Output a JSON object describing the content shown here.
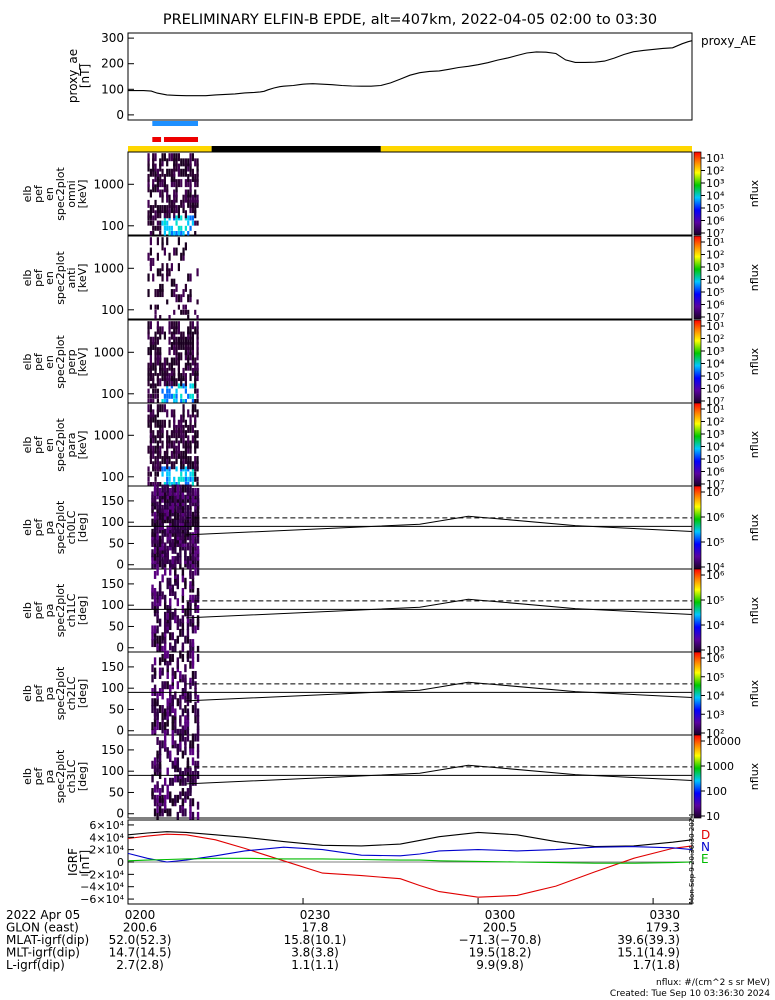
{
  "title": "PRELIMINARY ELFIN-B EPDE, alt=407km, 2022-04-05 02:00 to 03:30",
  "chart_data": [
    {
      "panel": "proxy_ae",
      "type": "line",
      "ylabel": [
        "proxy_ae",
        "[nT]"
      ],
      "legend": "proxy_AE",
      "ylim": [
        -20,
        320
      ],
      "yticks": [
        0,
        100,
        200,
        300
      ],
      "x_minutes": [
        0,
        8,
        12,
        15,
        20,
        25,
        30,
        40,
        45,
        55,
        60,
        65,
        68,
        70,
        72,
        75,
        78,
        80,
        85,
        88,
        90,
        92,
        95,
        100,
        105,
        110,
        115,
        120,
        125,
        130,
        135,
        140,
        145,
        150,
        155,
        160,
        165,
        170,
        175,
        180,
        185,
        190,
        195,
        200,
        205,
        210,
        215,
        220,
        225,
        230,
        235,
        240,
        245,
        250,
        255,
        260,
        265,
        270,
        275,
        280,
        285,
        288,
        290
      ],
      "values": [
        95,
        95,
        93,
        85,
        78,
        76,
        75,
        75,
        78,
        82,
        86,
        88,
        90,
        92,
        98,
        105,
        110,
        112,
        115,
        118,
        120,
        121,
        122,
        120,
        118,
        115,
        113,
        112,
        112,
        115,
        125,
        140,
        155,
        165,
        170,
        172,
        178,
        185,
        190,
        196,
        204,
        214,
        222,
        232,
        242,
        246,
        245,
        240,
        215,
        205,
        205,
        206,
        210,
        222,
        236,
        247,
        252,
        256,
        260,
        262,
        278,
        286,
        290
      ]
    },
    {
      "panel": "orbit_indicators",
      "type": "bars",
      "bars": [
        {
          "color": "#1e90ff",
          "x0": 12.5,
          "x1": 36
        },
        {
          "color": "#ee0000",
          "x0": 12.5,
          "x1": 17
        },
        {
          "color": "#ee0000",
          "x0": 18.5,
          "x1": 36
        }
      ],
      "sun_bar": [
        {
          "color": "#ffd700",
          "x0": 0,
          "x1": 43
        },
        {
          "color": "#000000",
          "x0": 43,
          "x1": 130
        },
        {
          "color": "#ffd700",
          "x0": 130,
          "x1": 290
        }
      ]
    },
    {
      "panel": "spectrogram",
      "type": "heatmap",
      "names": [
        [
          "elb",
          "pef",
          "en",
          "spec2plot",
          "omni",
          "[keV]"
        ],
        [
          "elb",
          "pef",
          "en",
          "spec2plot",
          "anti",
          "[keV]"
        ],
        [
          "elb",
          "pef",
          "en",
          "spec2plot",
          "perp",
          "[keV]"
        ],
        [
          "elb",
          "pef",
          "en",
          "spec2plot",
          "para",
          "[keV]"
        ]
      ],
      "yscale": "log",
      "yticks": [
        100,
        1000
      ],
      "ylim_keV": [
        60,
        6000
      ],
      "colorbar": {
        "label": "nflux",
        "exponents": [
          "10¹",
          "10²",
          "10³",
          "10⁴",
          "10⁵",
          "10⁶",
          "10⁷"
        ]
      },
      "active_x": [
        10,
        36
      ]
    },
    {
      "panel": "pitch_angle",
      "type": "heatmap",
      "names": [
        [
          "elb",
          "pef",
          "pa",
          "spec2plot",
          "ch0LC",
          "[deg]"
        ],
        [
          "elb",
          "pef",
          "pa",
          "spec2plot",
          "ch1LC",
          "[deg]"
        ],
        [
          "elb",
          "pef",
          "pa",
          "spec2plot",
          "ch2LC",
          "[deg]"
        ],
        [
          "elb",
          "pef",
          "pa",
          "spec2plot",
          "ch3LC",
          "[deg]"
        ]
      ],
      "ylim": [
        -10,
        185
      ],
      "yticks": [
        0,
        50,
        100,
        150
      ],
      "ref_line": 90,
      "losscone_x": [
        0,
        30,
        150,
        175,
        230,
        290
      ],
      "losscone_y": [
        70,
        70,
        95,
        114,
        92,
        78
      ],
      "antilosscone_y": 110,
      "colorbars": [
        {
          "label": "nflux",
          "ticks": [
            "10⁷",
            "10⁶",
            "10⁵",
            "10⁴"
          ]
        },
        {
          "label": "nflux",
          "ticks": [
            "10⁶",
            "10⁵",
            "10⁴",
            "10³"
          ]
        },
        {
          "label": "nflux",
          "ticks": [
            "10⁶",
            "10⁵",
            "10⁴",
            "10³",
            "10²"
          ]
        },
        {
          "label": "nflux",
          "ticks": [
            "10000",
            "1000",
            "100",
            "10"
          ]
        }
      ]
    },
    {
      "panel": "igrf",
      "type": "line",
      "ylabel": [
        "IGRF",
        "[nT]"
      ],
      "yticks": [
        "6×10⁴",
        "4×10⁴",
        "2×10⁴",
        "0",
        "−2×10⁴",
        "−4×10⁴",
        "−6×10⁴"
      ],
      "ytick_values": [
        60000,
        40000,
        20000,
        0,
        -20000,
        -40000,
        -60000
      ],
      "ylim": [
        -68000,
        68000
      ],
      "legend": [
        {
          "name": "D",
          "color": "#e00000"
        },
        {
          "name": "N",
          "color": "#0000cc"
        },
        {
          "name": "E",
          "color": "#00bb00"
        }
      ],
      "x_minutes": [
        0,
        10,
        20,
        30,
        45,
        60,
        80,
        100,
        120,
        140,
        150,
        160,
        180,
        200,
        220,
        240,
        260,
        280,
        290
      ],
      "series": [
        {
          "name": "total",
          "color": "#000000",
          "values": [
            44000,
            47000,
            49000,
            48000,
            44000,
            40000,
            33000,
            27000,
            26000,
            29000,
            35000,
            41000,
            48000,
            44000,
            33000,
            25000,
            26000,
            32000,
            36000
          ]
        },
        {
          "name": "D",
          "color": "#e00000",
          "values": [
            38000,
            42000,
            45000,
            44000,
            36000,
            22000,
            2000,
            -18000,
            -22000,
            -27000,
            -38000,
            -48000,
            -57000,
            -54000,
            -39000,
            -16000,
            6000,
            22000,
            26000
          ]
        },
        {
          "name": "N",
          "color": "#0000cc",
          "values": [
            14000,
            6000,
            0,
            3000,
            10000,
            18000,
            24000,
            20000,
            11000,
            10000,
            13000,
            18000,
            20000,
            18000,
            20000,
            24000,
            25000,
            23000,
            20000
          ]
        },
        {
          "name": "E",
          "color": "#00bb00",
          "values": [
            2000,
            3000,
            4000,
            5000,
            6000,
            6000,
            5000,
            5000,
            4000,
            3000,
            3000,
            2000,
            1000,
            0,
            -1000,
            -2000,
            -2000,
            -1000,
            0
          ]
        }
      ]
    }
  ],
  "xaxis": {
    "ticks": [
      "0200",
      "0230",
      "0300",
      "0330"
    ],
    "rows": [
      {
        "label": "2022 Apr 05",
        "values": [
          "0200",
          "0230",
          "0300",
          "0330"
        ]
      },
      {
        "label": "GLON (east)",
        "values": [
          "200.6",
          "17.8",
          "200.5",
          "179.3"
        ]
      },
      {
        "label": "MLAT-igrf(dip)",
        "values": [
          "52.0(52.3)",
          "15.8(10.1)",
          "−71.3(−70.8)",
          "39.6(39.3)"
        ]
      },
      {
        "label": "MLT-igrf(dip)",
        "values": [
          "14.7(14.5)",
          "3.8(3.8)",
          "19.5(18.2)",
          "15.1(14.9)"
        ]
      },
      {
        "label": "L-igrf(dip)",
        "values": [
          "2.7(2.8)",
          "1.1(1.1)",
          "9.9(9.8)",
          "1.7(1.8)"
        ]
      }
    ]
  },
  "footer": {
    "units": "nflux: #/(cm^2 s sr MeV)",
    "created": "Created: Tue Sep 10 03:36:30 2024",
    "side_stamp": "Mon Sep 9 20:36:30 2024"
  }
}
